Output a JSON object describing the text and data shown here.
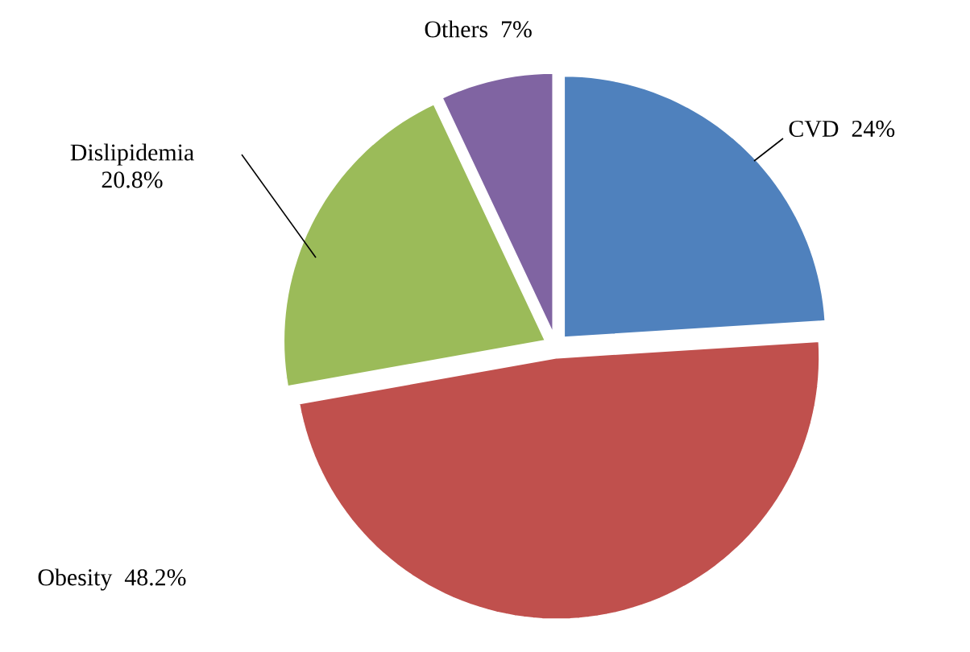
{
  "chart_data": {
    "type": "pie",
    "categories": [
      "CVD",
      "Obesity",
      "Dislipidemia",
      "Others"
    ],
    "values": [
      24,
      48.2,
      20.8,
      7
    ],
    "value_labels": [
      "24%",
      "48.2%",
      "20.8%",
      "7%"
    ],
    "colors": [
      "#4f81bd",
      "#c0504d",
      "#9bbb59",
      "#8064a2"
    ]
  }
}
